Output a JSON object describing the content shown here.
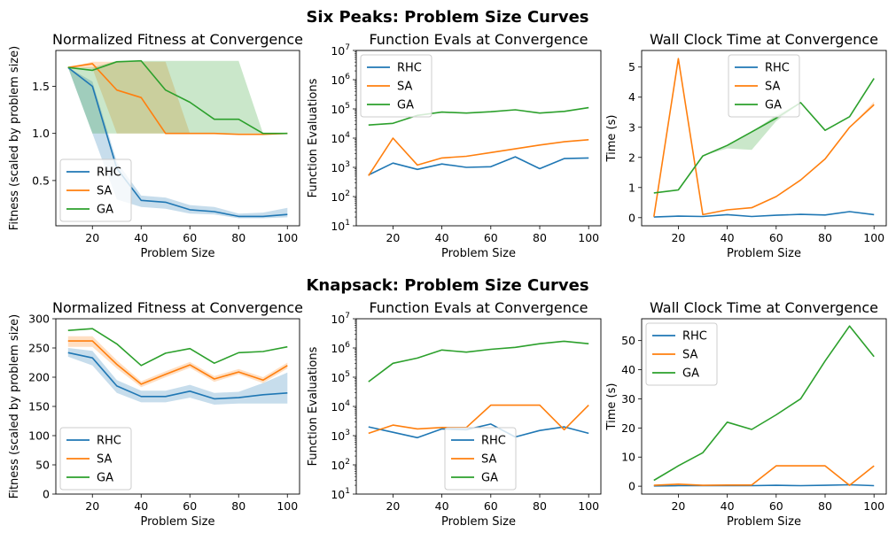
{
  "colors": {
    "RHC": "#1f77b4",
    "SA": "#ff7f0e",
    "GA": "#2ca02c"
  },
  "row_titles": [
    "Six Peaks: Problem Size Curves",
    "Knapsack: Problem Size Curves"
  ],
  "chart_data": [
    {
      "type": "line",
      "title": "Normalized Fitness at Convergence",
      "xlabel": "Problem Size",
      "ylabel": "Fitness (scaled by problem size)",
      "xlim": [
        5,
        105
      ],
      "ylim": [
        0.02,
        1.88
      ],
      "xticks": [
        20,
        40,
        60,
        80,
        100
      ],
      "yticks": [
        0.5,
        1.0,
        1.5
      ],
      "yticklabels": [
        "0.5",
        "1.0",
        "1.5"
      ],
      "yscale": "linear",
      "legend": "lower-left",
      "x": [
        10,
        20,
        30,
        40,
        50,
        60,
        70,
        80,
        90,
        100
      ],
      "series": [
        {
          "name": "RHC",
          "values": [
            1.7,
            1.5,
            0.63,
            0.29,
            0.27,
            0.19,
            0.17,
            0.12,
            0.12,
            0.14
          ],
          "band_low": [
            1.7,
            1.0,
            0.3,
            0.22,
            0.2,
            0.15,
            0.14,
            0.1,
            0.1,
            0.11
          ],
          "band_high": [
            1.7,
            1.55,
            0.7,
            0.34,
            0.32,
            0.24,
            0.22,
            0.15,
            0.16,
            0.21
          ]
        },
        {
          "name": "SA",
          "values": [
            1.7,
            1.74,
            1.46,
            1.38,
            1.0,
            1.0,
            1.0,
            0.99,
            0.99,
            1.0
          ],
          "band_low": [
            1.7,
            1.69,
            1.0,
            1.0,
            1.0,
            1.0,
            1.0,
            0.99,
            0.99,
            1.0
          ],
          "band_high": [
            1.7,
            1.76,
            1.76,
            1.76,
            1.76,
            1.0,
            1.0,
            0.99,
            0.99,
            1.0
          ]
        },
        {
          "name": "GA",
          "values": [
            1.7,
            1.67,
            1.76,
            1.77,
            1.46,
            1.33,
            1.15,
            1.15,
            1.0,
            1.0
          ],
          "band_low": [
            1.7,
            1.0,
            1.0,
            1.0,
            1.0,
            1.0,
            1.0,
            1.0,
            1.0,
            1.0
          ],
          "band_high": [
            1.7,
            1.7,
            1.77,
            1.77,
            1.77,
            1.77,
            1.77,
            1.77,
            1.0,
            1.0
          ]
        }
      ]
    },
    {
      "type": "line",
      "title": "Function Evals at Convergence",
      "xlabel": "Problem Size",
      "ylabel": "Function Evaluations",
      "xlim": [
        5,
        105
      ],
      "ylim": [
        10,
        10000000
      ],
      "xticks": [
        20,
        40,
        60,
        80,
        100
      ],
      "yticks": [
        10,
        100,
        1000,
        10000,
        100000,
        1000000,
        10000000
      ],
      "yticklabels": [
        "10^1",
        "10^2",
        "10^3",
        "10^4",
        "10^5",
        "10^6",
        "10^7"
      ],
      "yscale": "log",
      "legend": "top-left",
      "x": [
        10,
        20,
        30,
        40,
        50,
        60,
        70,
        80,
        90,
        100
      ],
      "series": [
        {
          "name": "RHC",
          "values": [
            550,
            1400,
            850,
            1300,
            1000,
            1050,
            2300,
            900,
            2000,
            2100
          ]
        },
        {
          "name": "SA",
          "values": [
            520,
            10000,
            1200,
            2100,
            2400,
            3200,
            4300,
            5800,
            7500,
            8800
          ]
        },
        {
          "name": "GA",
          "values": [
            28000,
            32000,
            60000,
            78000,
            72000,
            80000,
            93000,
            72000,
            82000,
            110000
          ]
        }
      ]
    },
    {
      "type": "line",
      "title": "Wall Clock Time at Convergence",
      "xlabel": "Problem Size",
      "ylabel": "Time (s)",
      "xlim": [
        5,
        105
      ],
      "ylim": [
        -0.27,
        5.55
      ],
      "xticks": [
        20,
        40,
        60,
        80,
        100
      ],
      "yticks": [
        0,
        1,
        2,
        3,
        4,
        5
      ],
      "yticklabels": [
        "0",
        "1",
        "2",
        "3",
        "4",
        "5"
      ],
      "yscale": "linear",
      "legend": "top-center",
      "x": [
        10,
        20,
        30,
        40,
        50,
        60,
        70,
        80,
        90,
        100
      ],
      "series": [
        {
          "name": "RHC",
          "values": [
            0.02,
            0.05,
            0.04,
            0.1,
            0.04,
            0.08,
            0.11,
            0.09,
            0.2,
            0.1
          ]
        },
        {
          "name": "SA",
          "values": [
            0.03,
            5.28,
            0.1,
            0.26,
            0.33,
            0.7,
            1.25,
            1.95,
            3.0,
            3.75
          ],
          "band_low": [
            0.03,
            5.28,
            0.1,
            0.26,
            0.33,
            0.7,
            1.25,
            1.95,
            3.0,
            3.7
          ],
          "band_high": [
            0.03,
            5.28,
            0.1,
            0.26,
            0.33,
            0.7,
            1.25,
            1.95,
            3.0,
            3.85
          ]
        },
        {
          "name": "GA",
          "values": [
            0.82,
            0.92,
            2.05,
            2.4,
            2.85,
            3.3,
            3.82,
            2.9,
            3.35,
            4.62
          ],
          "band_low": [
            0.82,
            0.92,
            2.05,
            2.3,
            2.25,
            3.2,
            3.82,
            2.9,
            3.35,
            4.62
          ],
          "band_high": [
            0.82,
            0.92,
            2.05,
            2.4,
            2.85,
            3.4,
            3.82,
            2.9,
            3.35,
            4.62
          ]
        }
      ]
    },
    {
      "type": "line",
      "title": "Normalized Fitness at Convergence",
      "xlabel": "Problem Size",
      "ylabel": "Fitness (scaled by problem size)",
      "xlim": [
        5,
        105
      ],
      "ylim": [
        0,
        300
      ],
      "xticks": [
        20,
        40,
        60,
        80,
        100
      ],
      "yticks": [
        0,
        50,
        100,
        150,
        200,
        250,
        300
      ],
      "yticklabels": [
        "0",
        "50",
        "100",
        "150",
        "200",
        "250",
        "300"
      ],
      "yscale": "linear",
      "legend": "lower-left",
      "x": [
        10,
        20,
        30,
        40,
        50,
        60,
        70,
        80,
        90,
        100
      ],
      "series": [
        {
          "name": "RHC",
          "values": [
            242,
            233,
            185,
            167,
            167,
            176,
            163,
            165,
            170,
            173
          ],
          "band_low": [
            235,
            220,
            173,
            157,
            157,
            165,
            153,
            155,
            155,
            155
          ],
          "band_high": [
            250,
            245,
            195,
            177,
            177,
            187,
            173,
            175,
            190,
            208
          ]
        },
        {
          "name": "SA",
          "values": [
            262,
            262,
            222,
            188,
            205,
            221,
            197,
            209,
            195,
            220
          ],
          "band_low": [
            252,
            252,
            215,
            183,
            200,
            216,
            192,
            205,
            190,
            215
          ],
          "band_high": [
            270,
            270,
            229,
            193,
            210,
            226,
            202,
            214,
            200,
            225
          ]
        },
        {
          "name": "GA",
          "values": [
            280,
            283,
            257,
            220,
            241,
            249,
            224,
            242,
            244,
            252
          ]
        }
      ]
    },
    {
      "type": "line",
      "title": "Function Evals at Convergence",
      "xlabel": "Problem Size",
      "ylabel": "Function Evaluations",
      "xlim": [
        5,
        105
      ],
      "ylim": [
        10,
        10000000
      ],
      "xticks": [
        20,
        40,
        60,
        80,
        100
      ],
      "yticks": [
        10,
        100,
        1000,
        10000,
        100000,
        1000000,
        10000000
      ],
      "yticklabels": [
        "10^1",
        "10^2",
        "10^3",
        "10^4",
        "10^5",
        "10^6",
        "10^7"
      ],
      "yscale": "log",
      "legend": "lower-center",
      "x": [
        10,
        20,
        30,
        40,
        50,
        60,
        70,
        80,
        90,
        100
      ],
      "series": [
        {
          "name": "RHC",
          "values": [
            2000,
            1300,
            850,
            1700,
            1600,
            2500,
            900,
            1500,
            2000,
            1200
          ]
        },
        {
          "name": "SA",
          "values": [
            1200,
            2300,
            1700,
            1900,
            1900,
            11000,
            11000,
            11000,
            1600,
            11000
          ]
        },
        {
          "name": "GA",
          "values": [
            70000,
            300000,
            450000,
            850000,
            720000,
            900000,
            1050000,
            1400000,
            1700000,
            1400000
          ]
        }
      ]
    },
    {
      "type": "line",
      "title": "Wall Clock Time at Convergence",
      "xlabel": "Problem Size",
      "ylabel": "Time (s)",
      "xlim": [
        5,
        105
      ],
      "ylim": [
        -2.7,
        57.5
      ],
      "xticks": [
        20,
        40,
        60,
        80,
        100
      ],
      "yticks": [
        0,
        10,
        20,
        30,
        40,
        50
      ],
      "yticklabels": [
        "0",
        "10",
        "20",
        "30",
        "40",
        "50"
      ],
      "yscale": "linear",
      "legend": "top-left",
      "x": [
        10,
        20,
        30,
        40,
        50,
        60,
        70,
        80,
        90,
        100
      ],
      "series": [
        {
          "name": "RHC",
          "values": [
            0.1,
            0.2,
            0.2,
            0.2,
            0.2,
            0.3,
            0.2,
            0.3,
            0.5,
            0.2
          ]
        },
        {
          "name": "SA",
          "values": [
            0.3,
            0.7,
            0.3,
            0.4,
            0.4,
            7.0,
            7.0,
            7.0,
            0.3,
            7.0
          ]
        },
        {
          "name": "GA",
          "values": [
            2.0,
            7.0,
            11.5,
            22.0,
            19.5,
            24.5,
            30.0,
            43.0,
            55.0,
            44.5
          ]
        }
      ]
    }
  ]
}
